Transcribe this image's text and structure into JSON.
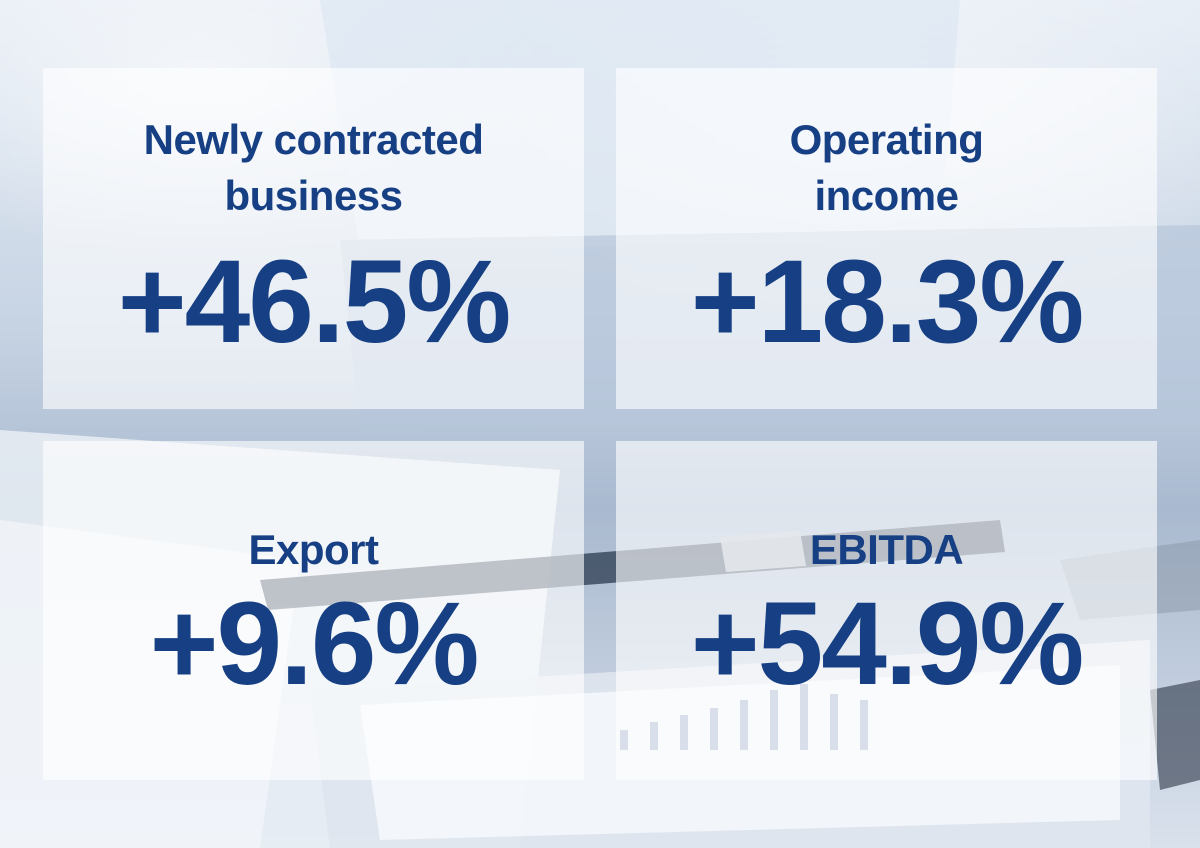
{
  "colors": {
    "text": "#163f84",
    "panel": "rgba(255,255,255,0.62)",
    "background": "#c7d4e4"
  },
  "metrics": [
    {
      "label": "Newly contracted\nbusiness",
      "value": "+46.5%"
    },
    {
      "label": "Operating\nincome",
      "value": "+18.3%"
    },
    {
      "label": "Export",
      "value": "+9.6%"
    },
    {
      "label": "EBITDA",
      "value": "+54.9%"
    }
  ]
}
